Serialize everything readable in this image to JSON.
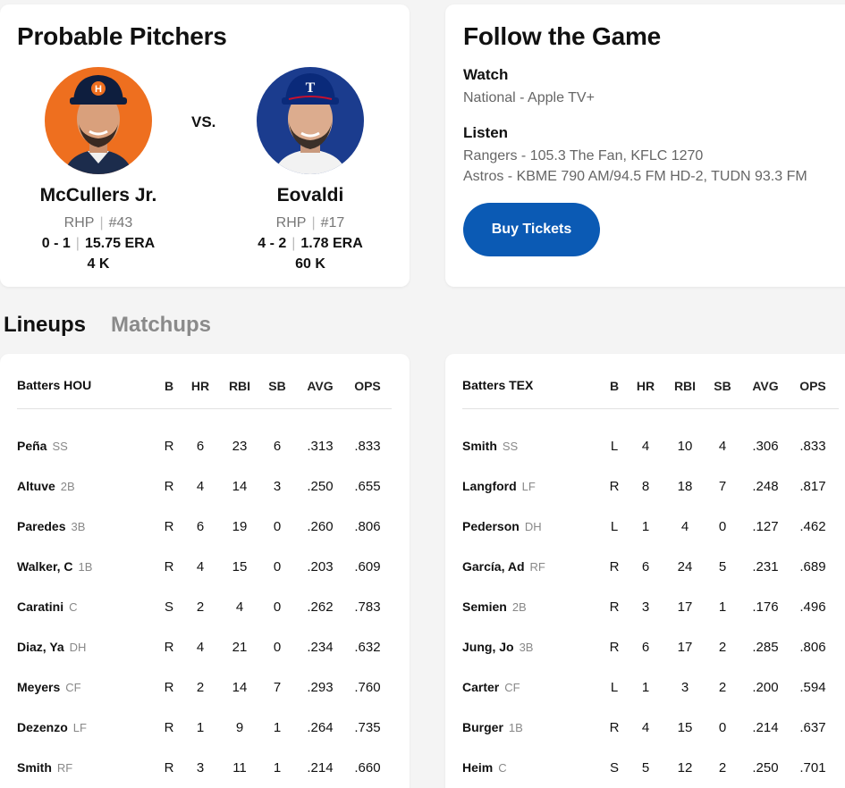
{
  "pitchers": {
    "title": "Probable Pitchers",
    "vs": "VS.",
    "home": {
      "name": "McCullers Jr.",
      "hand": "RHP",
      "number": "#43",
      "record": "0 - 1",
      "era": "15.75 ERA",
      "k": "4 K",
      "bg_color": "#ee6f1f",
      "cap_letter": "H"
    },
    "away": {
      "name": "Eovaldi",
      "hand": "RHP",
      "number": "#17",
      "record": "4 - 2",
      "era": "1.78 ERA",
      "k": "60 K",
      "bg_color": "#1b3c8e",
      "cap_letter": "T"
    }
  },
  "follow": {
    "title": "Follow the Game",
    "watch_label": "Watch",
    "watch_value": "National - Apple TV+",
    "listen_label": "Listen",
    "listen_rangers": "Rangers - 105.3 The Fan, KFLC 1270",
    "listen_astros": "Astros - KBME 790 AM/94.5 FM HD-2, TUDN 93.3 FM",
    "buy_label": "Buy Tickets",
    "button_color": "#0b5ab4"
  },
  "tabs": {
    "lineups": "Lineups",
    "matchups": "Matchups"
  },
  "columns": [
    "B",
    "HR",
    "RBI",
    "SB",
    "AVG",
    "OPS"
  ],
  "lineups": {
    "home": {
      "header": "Batters HOU",
      "rows": [
        {
          "name": "Peña",
          "pos": "SS",
          "b": "R",
          "hr": "6",
          "rbi": "23",
          "sb": "6",
          "avg": ".313",
          "ops": ".833"
        },
        {
          "name": "Altuve",
          "pos": "2B",
          "b": "R",
          "hr": "4",
          "rbi": "14",
          "sb": "3",
          "avg": ".250",
          "ops": ".655"
        },
        {
          "name": "Paredes",
          "pos": "3B",
          "b": "R",
          "hr": "6",
          "rbi": "19",
          "sb": "0",
          "avg": ".260",
          "ops": ".806"
        },
        {
          "name": "Walker, C",
          "pos": "1B",
          "b": "R",
          "hr": "4",
          "rbi": "15",
          "sb": "0",
          "avg": ".203",
          "ops": ".609"
        },
        {
          "name": "Caratini",
          "pos": "C",
          "b": "S",
          "hr": "2",
          "rbi": "4",
          "sb": "0",
          "avg": ".262",
          "ops": ".783"
        },
        {
          "name": "Diaz, Ya",
          "pos": "DH",
          "b": "R",
          "hr": "4",
          "rbi": "21",
          "sb": "0",
          "avg": ".234",
          "ops": ".632"
        },
        {
          "name": "Meyers",
          "pos": "CF",
          "b": "R",
          "hr": "2",
          "rbi": "14",
          "sb": "7",
          "avg": ".293",
          "ops": ".760"
        },
        {
          "name": "Dezenzo",
          "pos": "LF",
          "b": "R",
          "hr": "1",
          "rbi": "9",
          "sb": "1",
          "avg": ".264",
          "ops": ".735"
        },
        {
          "name": "Smith",
          "pos": "RF",
          "b": "R",
          "hr": "3",
          "rbi": "11",
          "sb": "1",
          "avg": ".214",
          "ops": ".660"
        }
      ]
    },
    "away": {
      "header": "Batters TEX",
      "rows": [
        {
          "name": "Smith",
          "pos": "SS",
          "b": "L",
          "hr": "4",
          "rbi": "10",
          "sb": "4",
          "avg": ".306",
          "ops": ".833"
        },
        {
          "name": "Langford",
          "pos": "LF",
          "b": "R",
          "hr": "8",
          "rbi": "18",
          "sb": "7",
          "avg": ".248",
          "ops": ".817"
        },
        {
          "name": "Pederson",
          "pos": "DH",
          "b": "L",
          "hr": "1",
          "rbi": "4",
          "sb": "0",
          "avg": ".127",
          "ops": ".462"
        },
        {
          "name": "García, Ad",
          "pos": "RF",
          "b": "R",
          "hr": "6",
          "rbi": "24",
          "sb": "5",
          "avg": ".231",
          "ops": ".689"
        },
        {
          "name": "Semien",
          "pos": "2B",
          "b": "R",
          "hr": "3",
          "rbi": "17",
          "sb": "1",
          "avg": ".176",
          "ops": ".496"
        },
        {
          "name": "Jung, Jo",
          "pos": "3B",
          "b": "R",
          "hr": "6",
          "rbi": "17",
          "sb": "2",
          "avg": ".285",
          "ops": ".806"
        },
        {
          "name": "Carter",
          "pos": "CF",
          "b": "L",
          "hr": "1",
          "rbi": "3",
          "sb": "2",
          "avg": ".200",
          "ops": ".594"
        },
        {
          "name": "Burger",
          "pos": "1B",
          "b": "R",
          "hr": "4",
          "rbi": "15",
          "sb": "0",
          "avg": ".214",
          "ops": ".637"
        },
        {
          "name": "Heim",
          "pos": "C",
          "b": "S",
          "hr": "5",
          "rbi": "12",
          "sb": "2",
          "avg": ".250",
          "ops": ".701"
        }
      ]
    }
  }
}
